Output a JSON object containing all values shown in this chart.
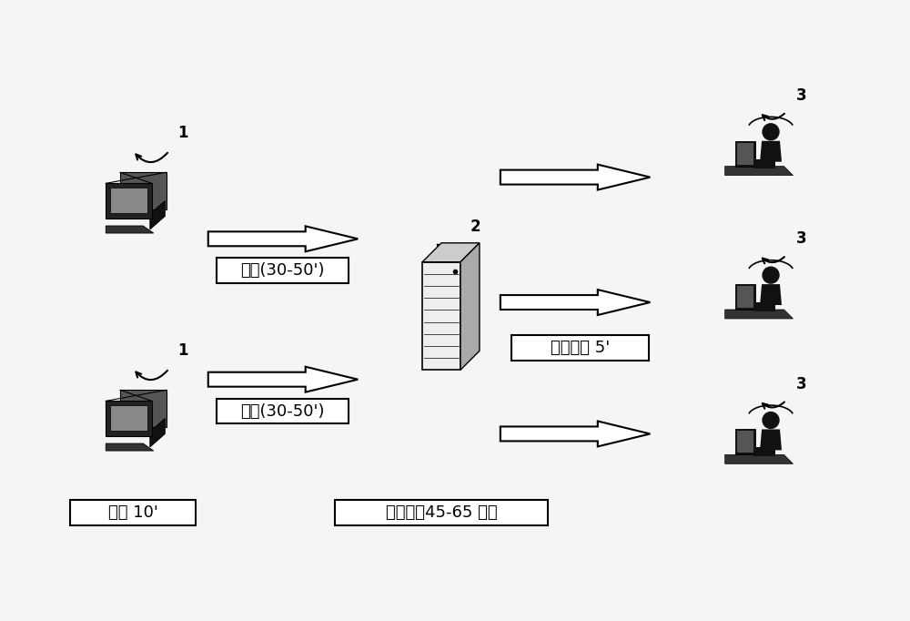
{
  "bg_color": "#f5f5f5",
  "label_upload1": "上传(30-50')",
  "label_upload2": "上传(30-50')",
  "label_scan": "扫描 10'",
  "label_data": "数据处理 5'",
  "label_total": "总时间：45-65 分钟",
  "label_1a": "1",
  "label_1b": "1",
  "label_2": "2",
  "label_3a": "3",
  "label_3b": "3",
  "label_3c": "3",
  "font_size_label": 13,
  "font_size_number": 12,
  "box_facecolor": "white",
  "box_edgecolor": "black",
  "arrow_facecolor": "white",
  "arrow_edgecolor": "black"
}
